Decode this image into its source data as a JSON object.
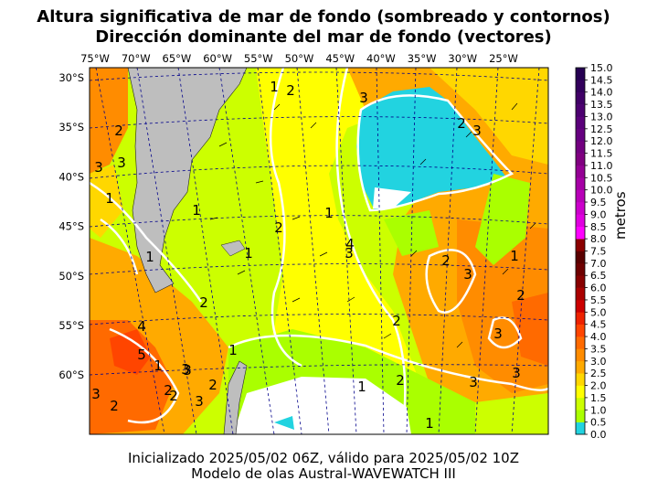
{
  "titles": {
    "line1": "Altura significativa de mar de fondo (sombreado y contornos)",
    "line2": "Dirección dominante del mar de fondo (vectores)"
  },
  "footer": {
    "line1": "Inicializado 2025/05/02 06Z, válido para 2025/05/02 10Z",
    "line2": "Modelo de olas Austral-WAVEWATCH III"
  },
  "longitude_labels": [
    "75°W",
    "70°W",
    "65°W",
    "60°W",
    "55°W",
    "50°W",
    "45°W",
    "40°W",
    "35°W",
    "30°W",
    "25°W"
  ],
  "latitude_labels": [
    "30°S",
    "35°S",
    "40°S",
    "45°S",
    "50°S",
    "55°S",
    "60°S"
  ],
  "colorbar": {
    "label": "metros",
    "ticks": [
      "0.0",
      "0.5",
      "1.0",
      "1.5",
      "2.0",
      "2.5",
      "3.0",
      "3.5",
      "4.0",
      "4.5",
      "5.0",
      "5.5",
      "6.0",
      "6.5",
      "7.0",
      "7.5",
      "8.0",
      "8.5",
      "9.0",
      "9.5",
      "10.0",
      "10.5",
      "11.0",
      "11.5",
      "12.0",
      "12.5",
      "13.0",
      "13.5",
      "14.0",
      "14.5",
      "15.0"
    ],
    "colors": [
      "#22d3e0",
      "#aaff00",
      "#ccff00",
      "#ffff00",
      "#ffd700",
      "#ffaa00",
      "#ff8c00",
      "#ff6a00",
      "#ff4500",
      "#ee2200",
      "#cc0000",
      "#aa0000",
      "#880000",
      "#6e0000",
      "#5a0000",
      "#8b0000",
      "#ff00ff",
      "#e000e0",
      "#cc00cc",
      "#b800b8",
      "#a600a6",
      "#940094",
      "#800080",
      "#730080",
      "#660080",
      "#5a007a",
      "#4c0070",
      "#400066",
      "#33005c",
      "#260052"
    ]
  },
  "contour_labels": [
    "1",
    "2",
    "3",
    "1",
    "2",
    "3",
    "2",
    "3",
    "2",
    "3",
    "3",
    "1",
    "1",
    "2",
    "3",
    "3",
    "2",
    "1",
    "2",
    "4",
    "5",
    "1",
    "3",
    "2",
    "1",
    "1",
    "3",
    "2",
    "3",
    "3",
    "2",
    "1",
    "2",
    "3",
    "2",
    "2",
    "1",
    "1",
    "3",
    "4"
  ],
  "colors": {
    "land": "#bebebe",
    "ice_cap": "#ffffff",
    "contour_line": "#ffffff",
    "grid_line": "#00008b"
  }
}
